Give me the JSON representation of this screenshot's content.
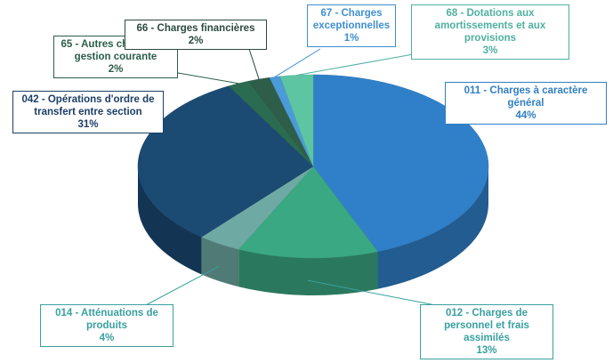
{
  "chart_data": {
    "type": "pie3d",
    "categories": [
      "011 - Charges à caractère général",
      "012 - Charges de personnel et frais assimilés",
      "014 - Atténuations de produits",
      "042 - Opérations d'ordre de transfert entre section",
      "65 - Autres charges de gestion courante",
      "66 - Charges financières",
      "67 - Charges exceptionnelles",
      "68 - Dotations aux amortissements et aux provisions"
    ],
    "values": [
      44,
      13,
      4,
      31,
      2,
      2,
      1,
      3
    ],
    "value_labels": [
      "44%",
      "13%",
      "4%",
      "31%",
      "2%",
      "2%",
      "1%",
      "3%"
    ],
    "colors": [
      "#2f80c9",
      "#3aa883",
      "#6fa9a3",
      "#1b4a73",
      "#2b6b52",
      "#2e5e4a",
      "#4b9bd9",
      "#5ec5a2"
    ],
    "label_colors": [
      "#2f7fc4",
      "#3aa0a0",
      "#3aa0a0",
      "#1b3f66",
      "#2b5e4a",
      "#2b4a3e",
      "#3f8fd0",
      "#4fb0a0"
    ]
  }
}
